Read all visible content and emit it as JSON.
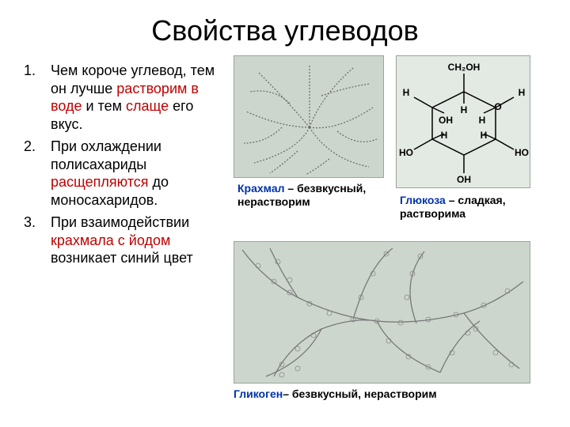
{
  "title": "Свойства углеводов",
  "list": [
    {
      "num": "1.",
      "segments": [
        {
          "t": "Чем короче углевод, тем он лучше ",
          "c": "black"
        },
        {
          "t": "растворим в воде",
          "c": "red"
        },
        {
          "t": " и тем ",
          "c": "black"
        },
        {
          "t": "слаще",
          "c": "red"
        },
        {
          "t": " его вкус.",
          "c": "black"
        }
      ]
    },
    {
      "num": "2.",
      "segments": [
        {
          "t": "При охлаждении полисахариды ",
          "c": "black"
        },
        {
          "t": "расщепляются",
          "c": "red"
        },
        {
          "t": " до моносахаридов.",
          "c": "black"
        }
      ]
    },
    {
      "num": "3.",
      "segments": [
        {
          "t": "При взаимодействии ",
          "c": "black"
        },
        {
          "t": "крахмала с йодом",
          "c": "red"
        },
        {
          "t": " возникает синий цвет",
          "c": "black"
        }
      ]
    }
  ],
  "captions": {
    "starch": {
      "name": "Крахмал",
      "desc": " – безвкусный, нерастворим"
    },
    "glucose": {
      "name": "Глюкоза",
      "desc": " – сладкая, растворима"
    },
    "glycogen": {
      "name": "Гликоген",
      "desc": "– безвкусный, нерастворим"
    }
  },
  "glucose_labels": {
    "ch2oh": "CH₂OH",
    "h": "H",
    "oh": "OH",
    "ho": "HO",
    "o": "O"
  },
  "colors": {
    "red": "#c00000",
    "blue": "#0033aa",
    "fig_bg": "#cdd6cd",
    "fig_border": "#9aa49a"
  }
}
